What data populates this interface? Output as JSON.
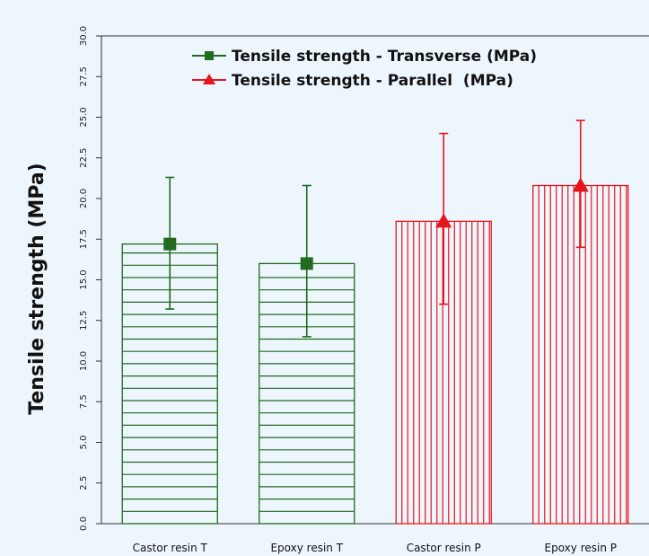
{
  "chart_data": {
    "type": "bar",
    "categories": [
      "Castor resin T",
      "Epoxy resin T",
      "Castor resin P",
      "Epoxy resin P"
    ],
    "series": [
      {
        "name": "Tensile strength - Transverse (MPa)",
        "color": "#1f6b1f",
        "marker": "square",
        "values": [
          17.2,
          16.0,
          null,
          null
        ],
        "err_low": [
          13.2,
          11.5,
          null,
          null
        ],
        "err_high": [
          21.3,
          20.8,
          null,
          null
        ]
      },
      {
        "name": "Tensile strength - Parallel  (MPa)",
        "color": "#e8141c",
        "marker": "triangle",
        "values": [
          null,
          null,
          18.6,
          20.8
        ],
        "err_low": [
          null,
          null,
          13.5,
          17.0
        ],
        "err_high": [
          null,
          null,
          24.0,
          24.8
        ]
      }
    ],
    "ylabel": "Tensile strength (MPa)",
    "xlabel": "",
    "ylim": [
      0,
      30
    ],
    "yticks": [
      "0.0",
      "2.5",
      "5.0",
      "7.5",
      "10.0",
      "12.5",
      "15.0",
      "17.5",
      "20.0",
      "22.5",
      "25.0",
      "27.5",
      "30.0"
    ],
    "grid": false,
    "legend_position": "top-right"
  }
}
